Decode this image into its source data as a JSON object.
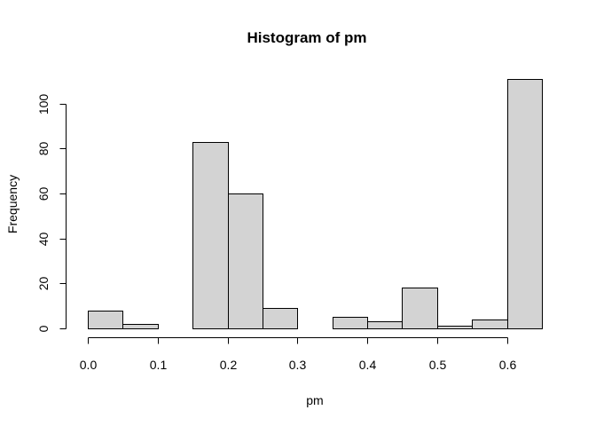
{
  "chart_data": {
    "type": "bar",
    "title": "Histogram of pm",
    "xlabel": "pm",
    "ylabel": "Frequency",
    "bin_edges": [
      0.0,
      0.05,
      0.1,
      0.15,
      0.2,
      0.25,
      0.3,
      0.35,
      0.4,
      0.45,
      0.5,
      0.55,
      0.6,
      0.65
    ],
    "values": [
      8,
      2,
      0,
      83,
      60,
      9,
      0,
      5,
      3,
      18,
      1,
      4,
      111
    ],
    "xlim": [
      0.0,
      0.65
    ],
    "ylim": [
      0,
      111
    ],
    "x_ticks": [
      0.0,
      0.1,
      0.2,
      0.3,
      0.4,
      0.5,
      0.6
    ],
    "x_tick_labels": [
      "0.0",
      "0.1",
      "0.2",
      "0.3",
      "0.4",
      "0.5",
      "0.6"
    ],
    "y_ticks": [
      0,
      20,
      40,
      60,
      80,
      100
    ],
    "y_tick_labels": [
      "0",
      "20",
      "40",
      "60",
      "80",
      "100"
    ],
    "bar_fill": "#d3d3d3",
    "bar_stroke": "#000000",
    "grid": false,
    "legend": "none"
  }
}
